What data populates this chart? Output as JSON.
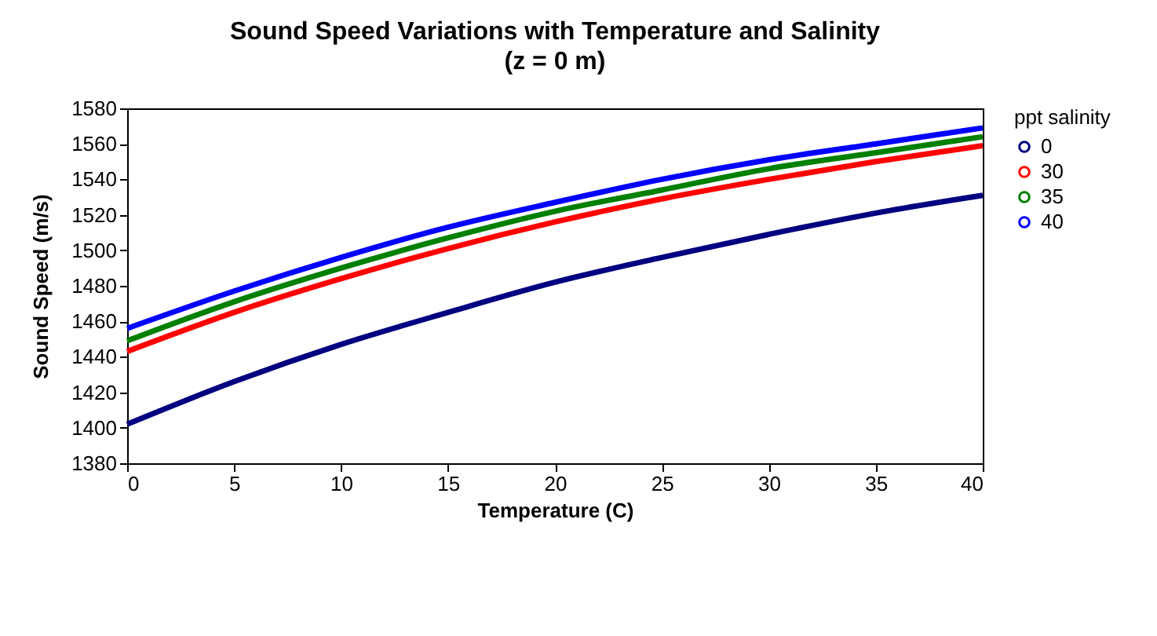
{
  "chart_data": {
    "type": "line",
    "title": "Sound Speed Variations with Temperature and Salinity",
    "subtitle": "(z = 0 m)",
    "xlabel": "Temperature (C)",
    "ylabel": "Sound Speed (m/s)",
    "legend_title": "ppt salinity",
    "legend": "right",
    "x": [
      0,
      5,
      10,
      15,
      20,
      25,
      30,
      35,
      40
    ],
    "series": [
      {
        "name": "0",
        "color": "#000080",
        "values": [
          1402,
          1426,
          1447,
          1465,
          1482,
          1496,
          1509,
          1521,
          1531
        ]
      },
      {
        "name": "30",
        "color": "#ff0000",
        "values": [
          1443,
          1465,
          1484,
          1501,
          1516,
          1529,
          1540,
          1550,
          1559
        ]
      },
      {
        "name": "35",
        "color": "#008000",
        "values": [
          1449,
          1471,
          1490,
          1507,
          1522,
          1534,
          1546,
          1555,
          1564
        ]
      },
      {
        "name": "40",
        "color": "#0000ff",
        "values": [
          1456,
          1477,
          1496,
          1513,
          1527,
          1540,
          1551,
          1560,
          1569
        ]
      }
    ],
    "xlim": [
      0,
      40
    ],
    "xticks": [
      0,
      5,
      10,
      15,
      20,
      25,
      30,
      35,
      40
    ],
    "ylim": [
      1380,
      1580
    ],
    "yticks": [
      1380,
      1400,
      1420,
      1440,
      1460,
      1480,
      1500,
      1520,
      1540,
      1560,
      1580
    ],
    "grid": false,
    "marker": "none",
    "line_style": "solid"
  }
}
